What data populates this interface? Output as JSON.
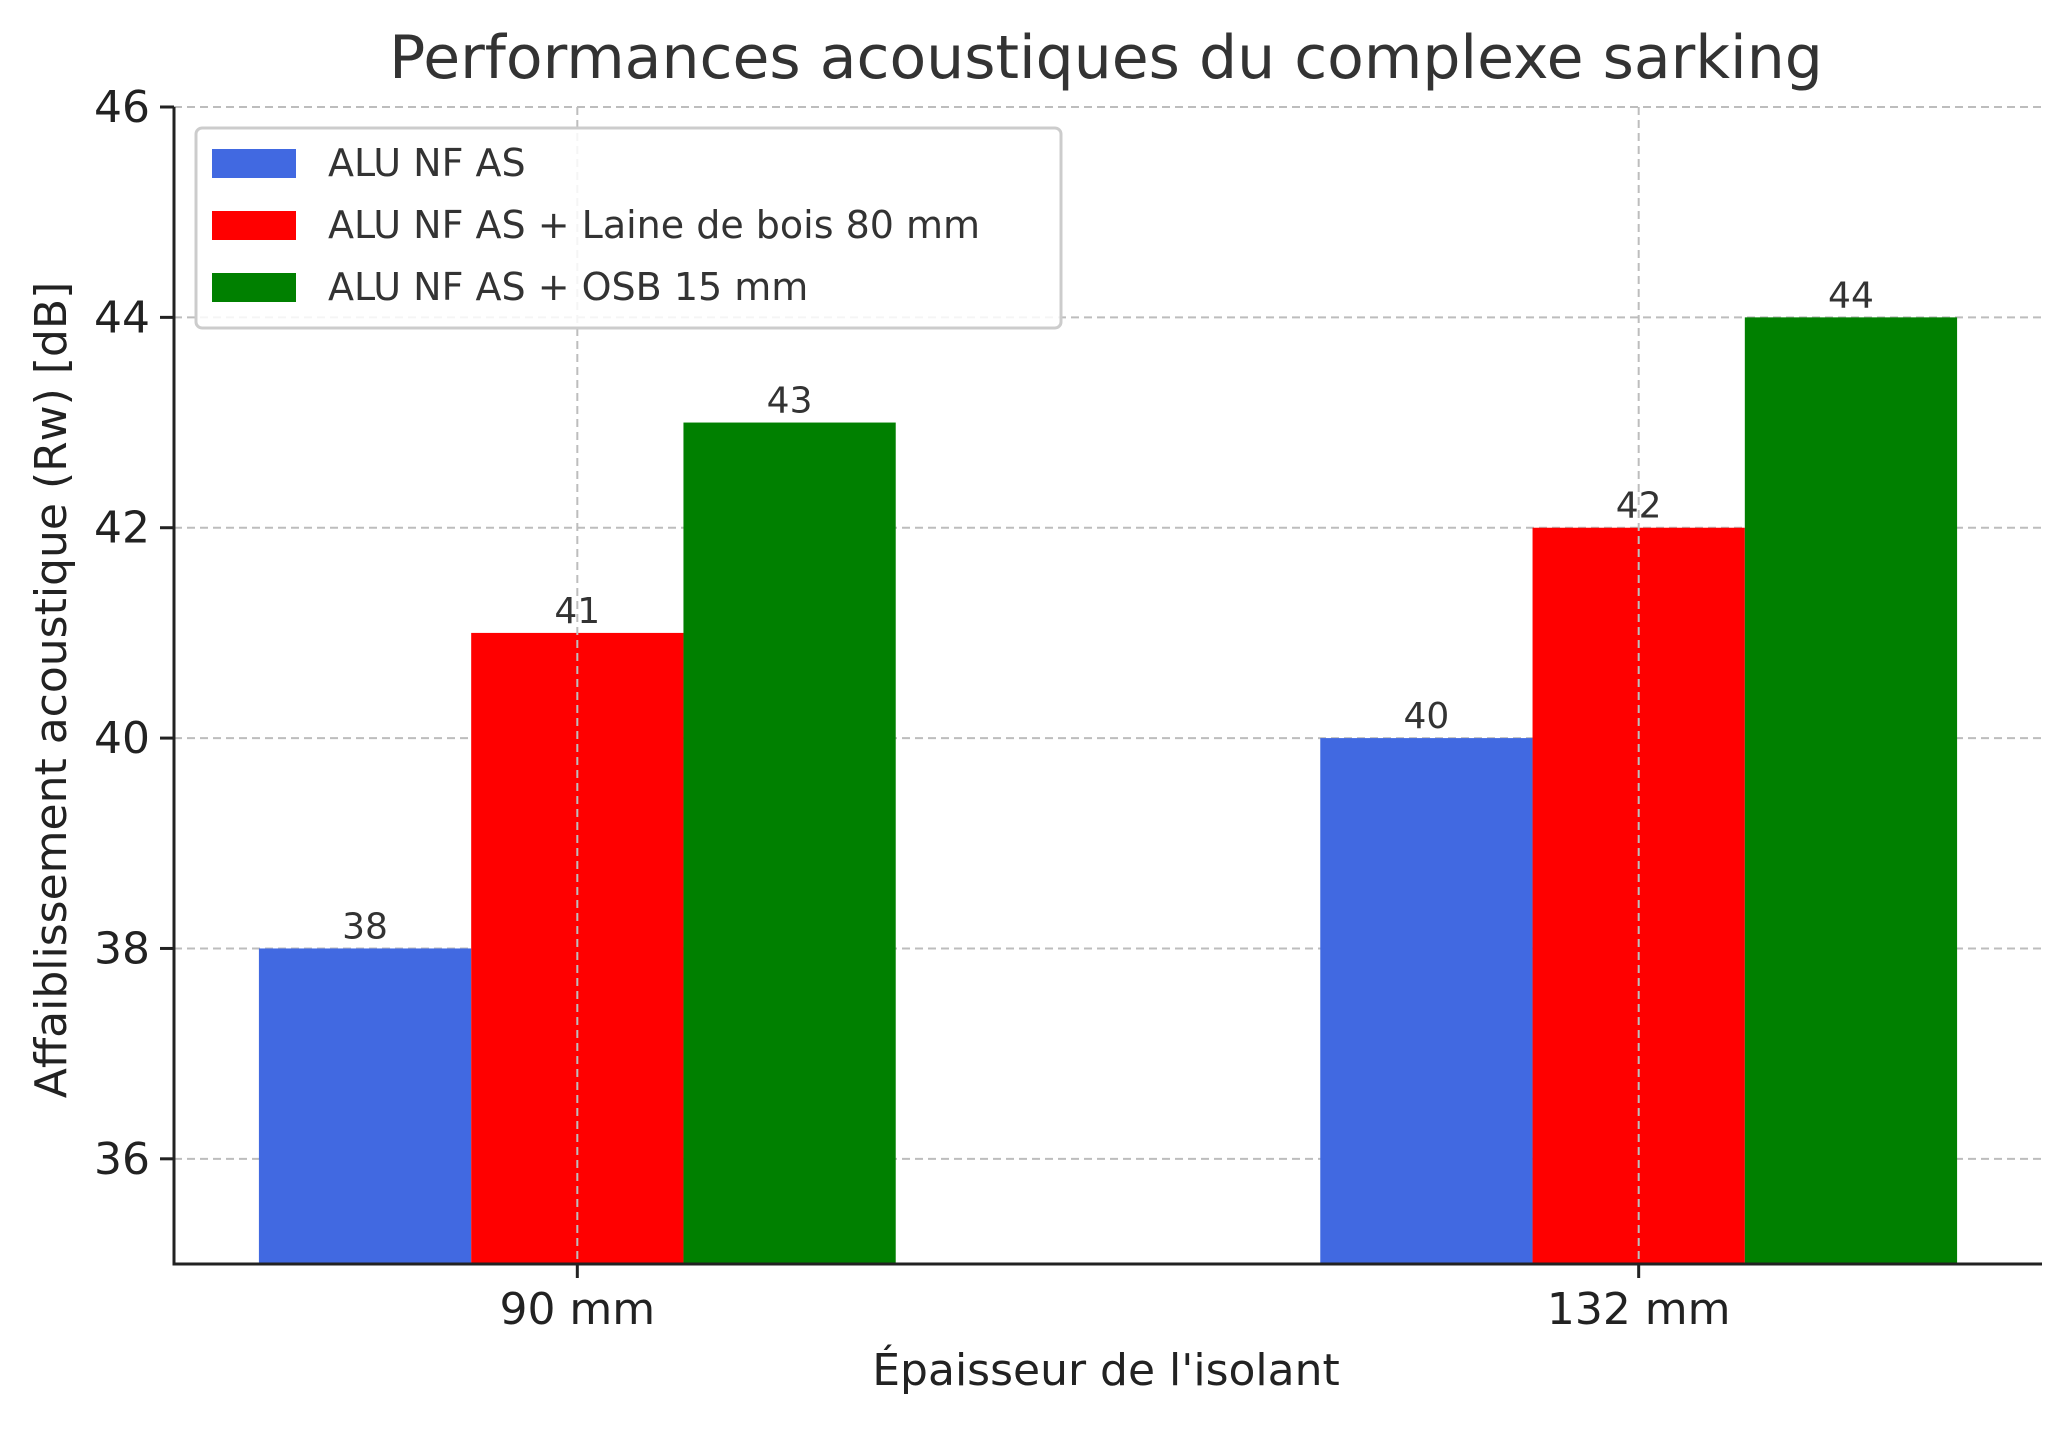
{
  "chart_data": {
    "type": "bar",
    "title": "Performances acoustiques du complexe sarking",
    "xlabel": "Épaisseur de l'isolant",
    "ylabel": "Affaiblissement acoustique (Rw) [dB]",
    "categories": [
      "90 mm",
      "132 mm"
    ],
    "series": [
      {
        "name": "ALU NF AS",
        "values": [
          38,
          40
        ],
        "color": "#4169e1"
      },
      {
        "name": "ALU NF AS + Laine de bois 80 mm",
        "values": [
          41,
          42
        ],
        "color": "#ff0000"
      },
      {
        "name": "ALU NF AS + OSB 15 mm",
        "values": [
          43,
          44
        ],
        "color": "#008000"
      }
    ],
    "ylim": [
      35,
      46
    ],
    "yticks": [
      36,
      38,
      40,
      42,
      44,
      46
    ],
    "grid": true,
    "legend_position": "top-left",
    "data_labels": true
  }
}
